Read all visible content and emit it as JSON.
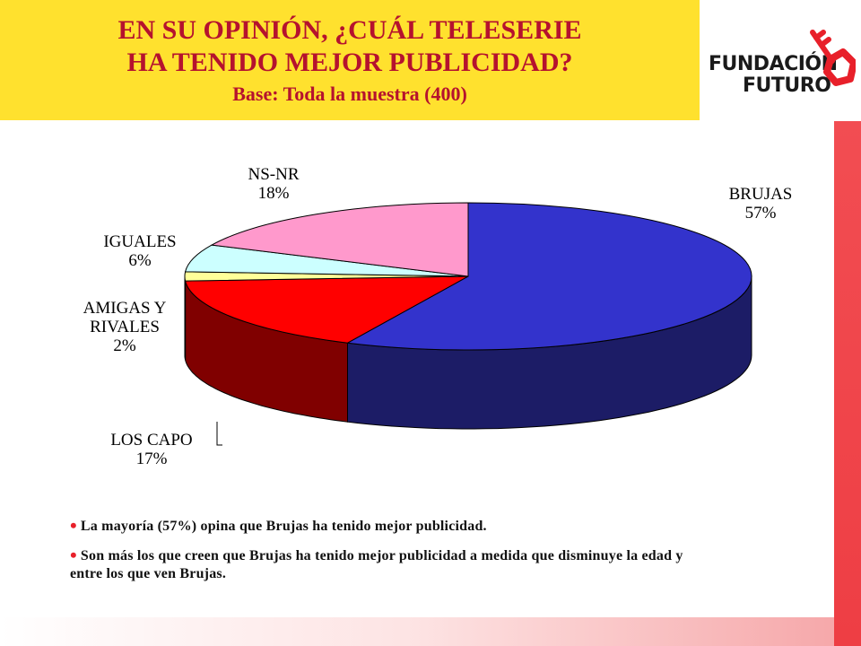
{
  "header": {
    "title_line1": "EN SU OPINIÓN, ¿CUÁL TELESERIE",
    "title_line2": "HA TENIDO MEJOR PUBLICIDAD?",
    "subtitle": "Base: Toda la muestra (400)"
  },
  "logo": {
    "line1": "FUNDACIÓN",
    "line2": "FUTURO",
    "icon": "key-icon"
  },
  "chart_data": {
    "type": "pie",
    "style": "3d",
    "categories": [
      "BRUJAS",
      "LOS CAPO",
      "AMIGAS Y RIVALES",
      "IGUALES",
      "NS-NR"
    ],
    "values": [
      57,
      17,
      2,
      6,
      18
    ],
    "labels": {
      "brujas": {
        "name": "BRUJAS",
        "pct": "57%"
      },
      "los_capo": {
        "name": "LOS CAPO",
        "pct": "17%"
      },
      "amigas_line1": "AMIGAS Y",
      "amigas_line2": "RIVALES",
      "amigas_pct": "2%",
      "iguales": {
        "name": "IGUALES",
        "pct": "6%"
      },
      "nsnr": {
        "name": "NS-NR",
        "pct": "18%"
      }
    },
    "colors": [
      "#3333CC",
      "#FF0000",
      "#FFFF99",
      "#CCFFFF",
      "#FF99CC"
    ],
    "side_colors": [
      "#1C1C66",
      "#800000",
      "#808050",
      "#668080",
      "#80506A"
    ]
  },
  "bullets": [
    "La mayoría (57%) opina que Brujas ha tenido mejor publicidad.",
    "Son más los que creen que Brujas ha tenido mejor publicidad a medida que disminuye la edad y entre los que ven Brujas."
  ],
  "colors": {
    "header_bg": "#FFE12E",
    "title": "#B5122E",
    "accent": "#EE3E44"
  }
}
